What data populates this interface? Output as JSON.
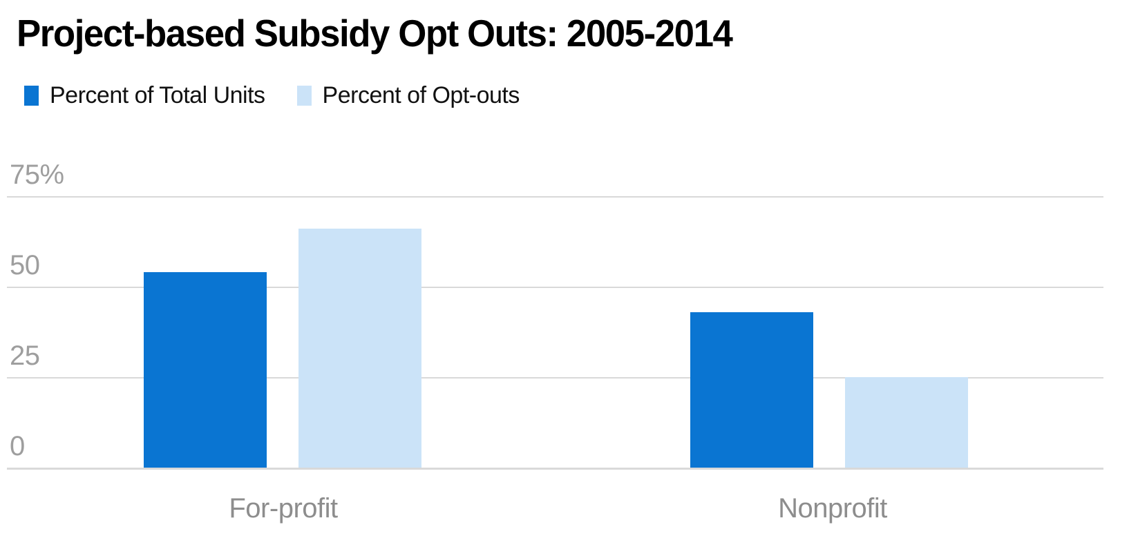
{
  "title": "Project-based Subsidy Opt Outs: 2005-2014",
  "legend": {
    "items": [
      {
        "label": "Percent of Total Units",
        "color": "#0a75d2"
      },
      {
        "label": "Percent of Opt-outs",
        "color": "#cbe3f8"
      }
    ]
  },
  "chart_data": {
    "type": "bar",
    "title": "Project-based Subsidy Opt Outs: 2005-2014",
    "categories": [
      "For-profit",
      "Nonprofit"
    ],
    "series": [
      {
        "name": "Percent of Total Units",
        "color": "#0a75d2",
        "values": [
          54,
          43
        ]
      },
      {
        "name": "Percent of Opt-outs",
        "color": "#cbe3f8",
        "values": [
          66,
          25
        ]
      }
    ],
    "xlabel": "",
    "ylabel": "",
    "unit": "%",
    "ylim": [
      0,
      75
    ],
    "y_ticks": [
      {
        "value": 75,
        "label": "75%"
      },
      {
        "value": 50,
        "label": "50"
      },
      {
        "value": 25,
        "label": "25"
      },
      {
        "value": 0,
        "label": "0"
      }
    ],
    "grid": "horizontal",
    "legend_position": "top-left",
    "colors": {
      "gridline": "#d9d9d9",
      "y_tick_text": "#9e9e9e",
      "x_tick_text": "#8d8d8d",
      "title_text": "#000000"
    }
  }
}
